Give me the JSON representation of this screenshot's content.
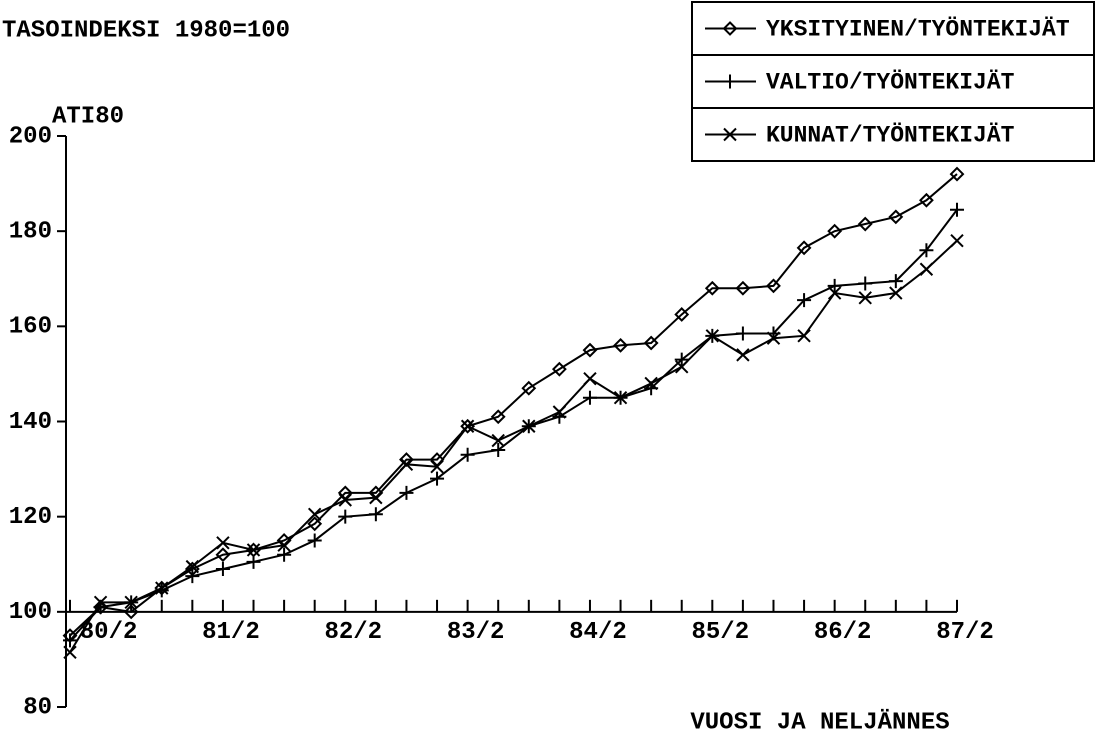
{
  "chart_data": {
    "type": "line",
    "title": "TASOINDEKSI 1980=100",
    "y_label": "ATI80",
    "x_label": "VUOSI JA NELJÄNNES",
    "categories": [
      null,
      "80/2",
      null,
      null,
      null,
      "81/2",
      null,
      null,
      null,
      "82/2",
      null,
      null,
      null,
      "83/2",
      null,
      null,
      null,
      "84/2",
      null,
      null,
      null,
      "85/2",
      null,
      null,
      null,
      "86/2",
      null,
      null,
      null,
      "87/2"
    ],
    "ylim": [
      80,
      200
    ],
    "yticks": [
      80,
      100,
      120,
      140,
      160,
      180,
      200
    ],
    "series": [
      {
        "name": "YKSITYINEN/TYÖNTEKIJÄT",
        "color": "#000000",
        "marker": "diamond",
        "values": [
          95,
          101,
          100,
          105,
          109,
          112,
          113,
          115,
          118.5,
          125,
          125,
          132,
          132,
          139,
          141,
          147,
          151,
          155,
          156,
          156.5,
          162.5,
          168,
          168,
          168.5,
          176.5,
          180,
          181.5,
          183,
          186.5,
          192
        ]
      },
      {
        "name": "VALTIO/TYÖNTEKIJÄT",
        "color": "#000000",
        "marker": "plus",
        "values": [
          94,
          101,
          102,
          104.5,
          107.5,
          109,
          110.5,
          112,
          115,
          120,
          120.5,
          125,
          128,
          133,
          134,
          139,
          141,
          145,
          145,
          147,
          153,
          158,
          158.5,
          158.5,
          165.5,
          168.5,
          169,
          169.5,
          176,
          184.5
        ]
      },
      {
        "name": "KUNNAT/TYÖNTEKIJÄT",
        "color": "#000000",
        "marker": "x",
        "values": [
          91.5,
          102,
          102,
          105,
          109.5,
          114.5,
          113,
          114,
          120.5,
          123.5,
          124,
          131,
          130.5,
          139,
          136,
          139,
          142,
          149,
          145,
          148,
          151.5,
          158,
          154,
          157.5,
          158,
          167,
          166,
          167,
          172,
          178
        ]
      }
    ]
  }
}
